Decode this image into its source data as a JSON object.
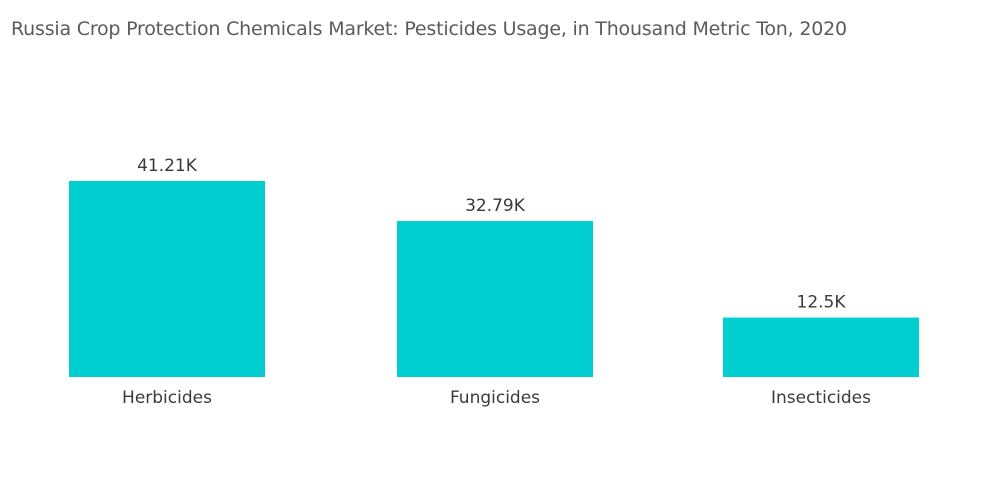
{
  "chart_data": {
    "type": "bar",
    "title": "Russia Crop Protection Chemicals Market: Pesticides Usage, in Thousand Metric Ton, 2020",
    "categories": [
      "Herbicides",
      "Fungicides",
      "Insecticides"
    ],
    "values": [
      41.21,
      32.79,
      12.5
    ],
    "data_labels": [
      "41.21K",
      "32.79K",
      "12.5K"
    ],
    "xlabel": "",
    "ylabel": "",
    "ylim": [
      0,
      41.21
    ],
    "grid": false,
    "legend": "none",
    "bar_color": "#00ced1"
  }
}
